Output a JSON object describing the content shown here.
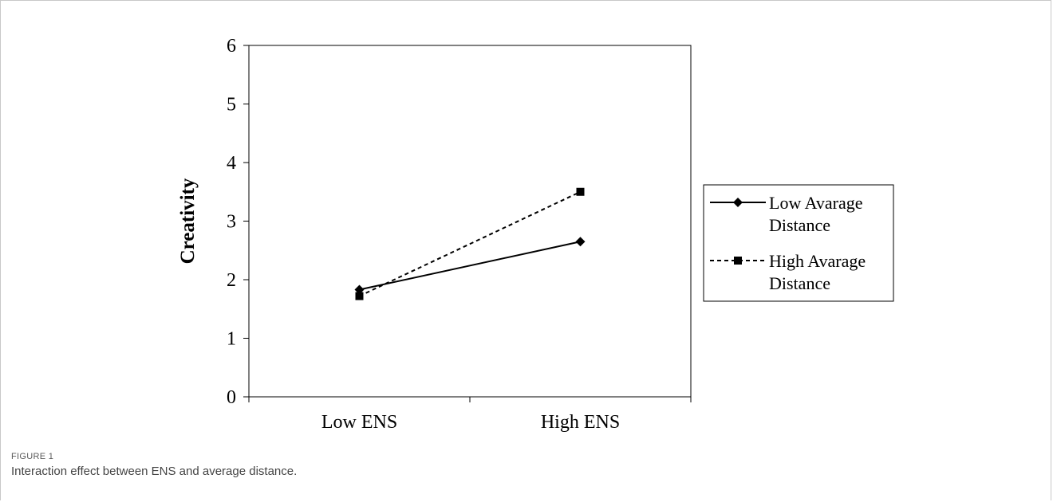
{
  "figure": {
    "label": "FIGURE 1",
    "caption": "Interaction effect between ENS and average distance."
  },
  "chart_data": {
    "type": "line",
    "categories": [
      "Low ENS",
      "High ENS"
    ],
    "ylabel": "Creativity",
    "xlabel": "",
    "ylim": [
      0,
      6
    ],
    "yticks": [
      0,
      1,
      2,
      3,
      4,
      5,
      6
    ],
    "grid": false,
    "legend_position": "right",
    "series": [
      {
        "name": "Low Avarage Distance",
        "name_lines": [
          "Low Avarage",
          "Distance"
        ],
        "values": [
          1.83,
          2.65
        ],
        "line_style": "solid",
        "marker": "diamond",
        "color": "#000000"
      },
      {
        "name": "High Avarage Distance",
        "name_lines": [
          "High Avarage",
          "Distance"
        ],
        "values": [
          1.72,
          3.5
        ],
        "line_style": "dashed",
        "marker": "square",
        "color": "#000000"
      }
    ]
  }
}
